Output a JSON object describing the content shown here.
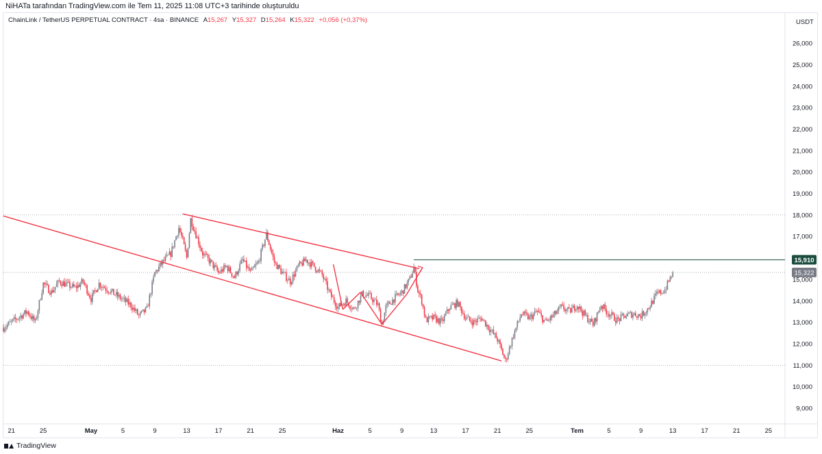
{
  "credit": "NiHATa tarafından TradingView.com ile Tem 11, 2025 11:08 UTC+3 tarihinde oluşturuldu",
  "legend": {
    "symbol": "ChainLink / TetherUS PERPETUAL CONTRACT · 4sa · BINANCE",
    "open_key": "A",
    "open": "15,267",
    "high_key": "Y",
    "high": "15,327",
    "low_key": "D",
    "low": "15,264",
    "close_key": "K",
    "close": "15,322",
    "change": "+0,056 (+0,37%)"
  },
  "currency": "USDT",
  "footer": {
    "brand": "TradingView",
    "logo_icon": "tradingview-logo-icon"
  },
  "colors": {
    "up": "#089981",
    "up_body": "#787b86",
    "down": "#f23645",
    "drawing": "#f23645",
    "hline": "#1b4d3e"
  },
  "chart_data": {
    "type": "candlestick",
    "y_axis": {
      "ticks": [
        9,
        10,
        11,
        12,
        13,
        14,
        15,
        16,
        17,
        18,
        19,
        20,
        21,
        22,
        23,
        24,
        25,
        26
      ],
      "tick_labels": [
        "9,000",
        "10,000",
        "11,000",
        "12,000",
        "13,000",
        "14,000",
        "15,000",
        "16,000",
        "17,000",
        "18,000",
        "19,000",
        "20,000",
        "21,000",
        "22,000",
        "23,000",
        "24,000",
        "25,000",
        "26,000"
      ],
      "range": [
        8.3,
        26.8
      ]
    },
    "x_axis": {
      "range_day": [
        -11,
        87
      ],
      "ticks": [
        {
          "day": -10,
          "label": "21"
        },
        {
          "day": -6,
          "label": "25"
        },
        {
          "day": 0,
          "label": "May"
        },
        {
          "day": 4,
          "label": "5"
        },
        {
          "day": 8,
          "label": "9"
        },
        {
          "day": 12,
          "label": "13"
        },
        {
          "day": 16,
          "label": "17"
        },
        {
          "day": 20,
          "label": "21"
        },
        {
          "day": 24,
          "label": "25"
        },
        {
          "day": 31,
          "label": "Haz"
        },
        {
          "day": 35,
          "label": "5"
        },
        {
          "day": 39,
          "label": "9"
        },
        {
          "day": 43,
          "label": "13"
        },
        {
          "day": 47,
          "label": "17"
        },
        {
          "day": 51,
          "label": "21"
        },
        {
          "day": 55,
          "label": "25"
        },
        {
          "day": 61,
          "label": "Tem"
        },
        {
          "day": 65,
          "label": "5"
        },
        {
          "day": 69,
          "label": "9"
        },
        {
          "day": 73,
          "label": "13"
        },
        {
          "day": 77,
          "label": "17"
        },
        {
          "day": 81,
          "label": "21"
        },
        {
          "day": 85,
          "label": "25"
        }
      ]
    },
    "price_path": [
      [
        -11,
        12.75
      ],
      [
        -8,
        13.5
      ],
      [
        -7,
        13.0
      ],
      [
        -6,
        14.8
      ],
      [
        -5,
        14.4
      ],
      [
        -4,
        14.9
      ],
      [
        -2,
        14.6
      ],
      [
        -1,
        14.9
      ],
      [
        0,
        14.1
      ],
      [
        1,
        14.8
      ],
      [
        3,
        14.3
      ],
      [
        5,
        13.8
      ],
      [
        6,
        13.3
      ],
      [
        7,
        13.6
      ],
      [
        8,
        15.3
      ],
      [
        9,
        15.8
      ],
      [
        10,
        16.2
      ],
      [
        11,
        17.4
      ],
      [
        11.5,
        16.8
      ],
      [
        12,
        16.0
      ],
      [
        12.5,
        17.8
      ],
      [
        14,
        16.2
      ],
      [
        15,
        15.8
      ],
      [
        16,
        15.3
      ],
      [
        17,
        15.6
      ],
      [
        18,
        15.1
      ],
      [
        19,
        15.9
      ],
      [
        20,
        15.3
      ],
      [
        21,
        15.8
      ],
      [
        22,
        17.1
      ],
      [
        23,
        15.8
      ],
      [
        24,
        15.3
      ],
      [
        25,
        14.9
      ],
      [
        26,
        15.6
      ],
      [
        27,
        15.9
      ],
      [
        28,
        15.6
      ],
      [
        29,
        15.2
      ],
      [
        30,
        14.3
      ],
      [
        31,
        13.7
      ],
      [
        32,
        14.0
      ],
      [
        33,
        13.6
      ],
      [
        34,
        14.3
      ],
      [
        35,
        14.2
      ],
      [
        36,
        13.8
      ],
      [
        36.5,
        12.9
      ],
      [
        37,
        13.7
      ],
      [
        38,
        14.1
      ],
      [
        39,
        14.4
      ],
      [
        40,
        15.0
      ],
      [
        40.5,
        15.55
      ],
      [
        41,
        14.5
      ],
      [
        41.5,
        14.0
      ],
      [
        42,
        13.1
      ],
      [
        43,
        13.2
      ],
      [
        44,
        13.0
      ],
      [
        45,
        13.7
      ],
      [
        46,
        13.9
      ],
      [
        47,
        13.2
      ],
      [
        48,
        13.0
      ],
      [
        49,
        13.2
      ],
      [
        50,
        12.7
      ],
      [
        51,
        12.2
      ],
      [
        52,
        11.2
      ],
      [
        53,
        12.4
      ],
      [
        54,
        13.4
      ],
      [
        55,
        13.2
      ],
      [
        56,
        13.5
      ],
      [
        57,
        13.0
      ],
      [
        58,
        13.3
      ],
      [
        59,
        13.7
      ],
      [
        60,
        13.5
      ],
      [
        61,
        13.8
      ],
      [
        62,
        13.3
      ],
      [
        63,
        12.9
      ],
      [
        64,
        13.8
      ],
      [
        65,
        13.4
      ],
      [
        66,
        13.1
      ],
      [
        67,
        13.3
      ],
      [
        68,
        13.4
      ],
      [
        69,
        13.3
      ],
      [
        70,
        13.7
      ],
      [
        71,
        14.3
      ],
      [
        72,
        14.5
      ],
      [
        73,
        15.322
      ]
    ],
    "trendlines": [
      {
        "from": [
          -11,
          17.95
        ],
        "to": [
          51.5,
          11.2
        ]
      },
      {
        "from": [
          11.5,
          18.05
        ],
        "to": [
          41.2,
          15.5
        ]
      },
      {
        "from": [
          30.4,
          15.7
        ],
        "to": [
          31.6,
          13.6
        ]
      },
      {
        "from": [
          31.6,
          13.6
        ],
        "to": [
          33.8,
          14.4
        ]
      },
      {
        "from": [
          33.8,
          14.4
        ],
        "to": [
          36.5,
          12.9
        ]
      },
      {
        "from": [
          36.5,
          12.9
        ],
        "to": [
          39.6,
          14.3
        ]
      },
      {
        "from": [
          39.6,
          14.3
        ],
        "to": [
          41.6,
          15.55
        ]
      }
    ],
    "horizontal_line": {
      "from_day": 40.5,
      "value": 15.91,
      "label": "15,910"
    },
    "last_price": {
      "value": 15.322,
      "label": "15,322"
    },
    "dotted_levels": [
      18.0,
      15.322,
      11.0
    ]
  }
}
